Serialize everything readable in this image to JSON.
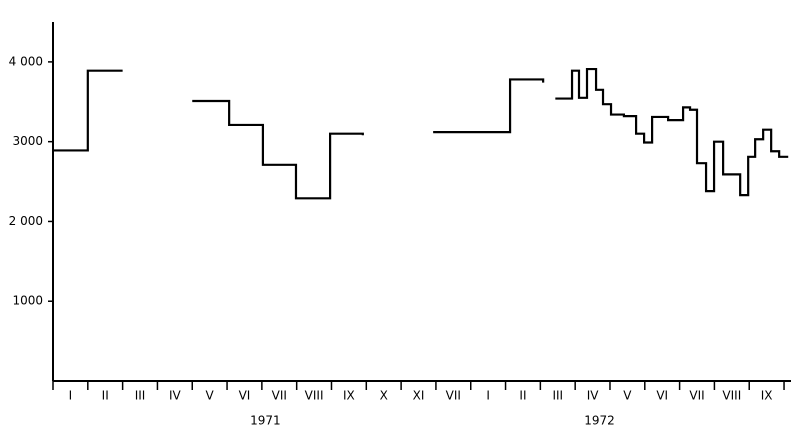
{
  "chart_data": {
    "type": "step",
    "categories": [
      "I",
      "II",
      "III",
      "IV",
      "V",
      "VI",
      "VII",
      "VIII",
      "IX",
      "X",
      "XI",
      "VII",
      "I",
      "II",
      "III",
      "IV",
      "V",
      "VI",
      "VII",
      "VIII",
      "IX"
    ],
    "years": [
      "1971",
      "1972"
    ],
    "x": [
      0,
      1,
      2,
      3,
      4,
      5.06,
      6.03,
      6.98,
      7.96,
      8.9,
      9.9,
      10.92,
      13.13,
      14.08,
      14.25,
      14.43,
      14.91,
      15.11,
      15.34,
      15.6,
      15.8,
      16.03,
      16.4,
      16.75,
      16.98,
      17.21,
      17.67,
      18.1,
      18.3,
      18.5,
      18.76,
      18.99,
      19.25,
      19.74,
      19.97,
      20.17,
      20.4,
      20.63,
      20.86,
      21.12
    ],
    "values": [
      2890,
      3890,
      3890,
      null,
      3510,
      3210,
      2710,
      2290,
      3100,
      3080,
      null,
      3120,
      3780,
      3740,
      null,
      3540,
      3890,
      3550,
      3910,
      3650,
      3470,
      3340,
      3320,
      3100,
      2990,
      3310,
      3270,
      3430,
      3400,
      2730,
      2380,
      3000,
      2590,
      2330,
      2810,
      3030,
      3150,
      2880,
      2810,
      2810
    ],
    "color": "#000000",
    "xlim": [
      0,
      21.2
    ],
    "ylim": [
      0,
      4500
    ],
    "yticks": [
      1000,
      {
        "value": 2000,
        "label": "2 000"
      },
      3000,
      {
        "value": 4000,
        "label": "4 000"
      }
    ]
  }
}
